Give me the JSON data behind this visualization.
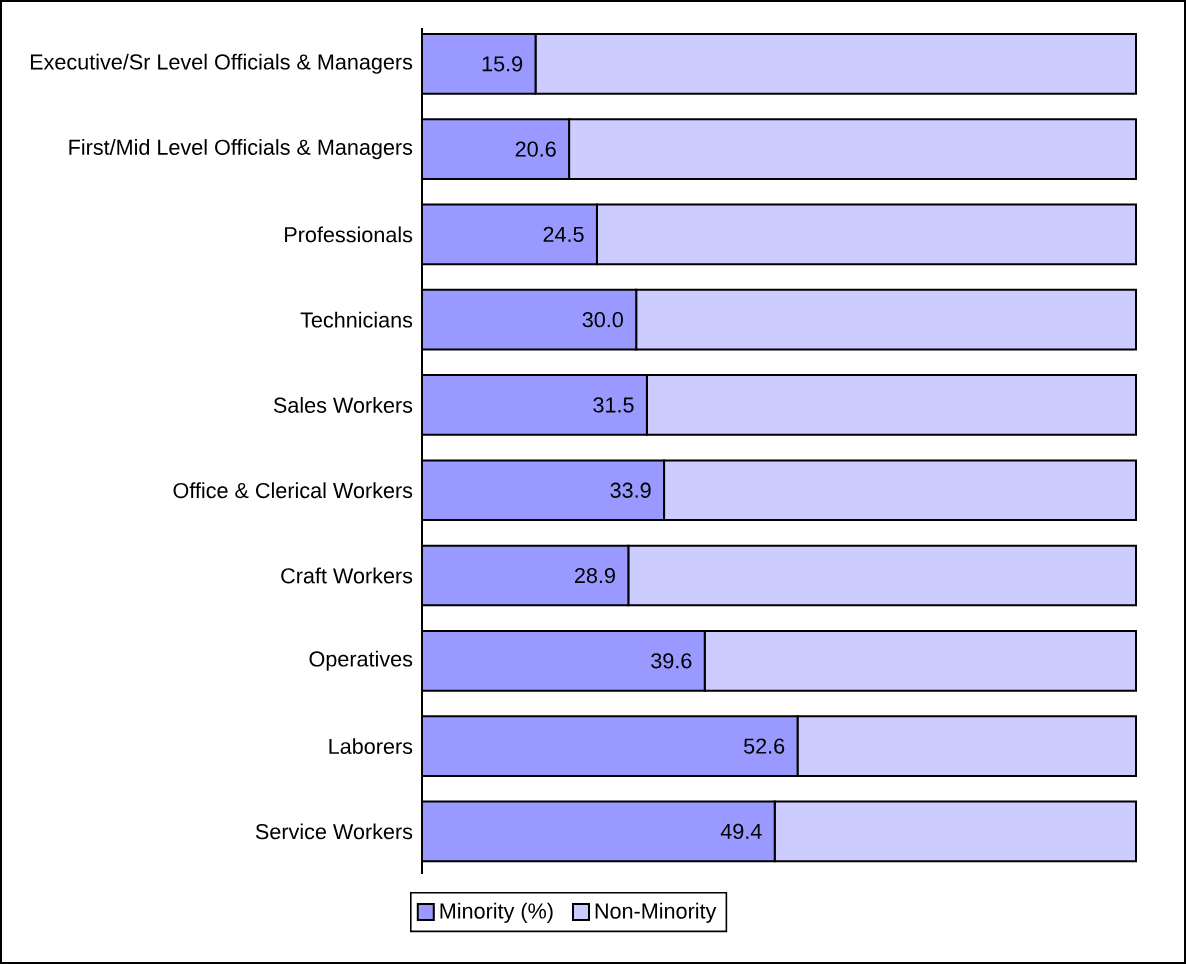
{
  "chart_data": {
    "type": "bar",
    "orientation": "horizontal",
    "stacked": true,
    "categories": [
      "Executive/Sr Level Officials & Managers",
      "First/Mid Level Officials & Managers",
      "Professionals",
      "Technicians",
      "Sales Workers",
      "Office & Clerical Workers",
      "Craft Workers",
      "Operatives",
      "Laborers",
      "Service Workers"
    ],
    "series": [
      {
        "name": "Minority (%)",
        "color": "#9999ff",
        "values": [
          15.9,
          20.6,
          24.5,
          30.0,
          31.5,
          33.9,
          28.9,
          39.6,
          52.6,
          49.4
        ],
        "value_labels": [
          "15.9",
          "20.6",
          "24.5",
          "30.0",
          "31.5",
          "33.9",
          "28.9",
          "39.6",
          "52.6",
          "49.4"
        ]
      },
      {
        "name": "Non-Minority",
        "color": "#ccccff",
        "values": [
          84.1,
          79.4,
          75.5,
          70.0,
          68.5,
          66.1,
          71.1,
          60.4,
          47.4,
          50.6
        ]
      }
    ],
    "xlim": [
      0,
      100
    ],
    "tick_labels": "y",
    "legend": "bottom"
  }
}
